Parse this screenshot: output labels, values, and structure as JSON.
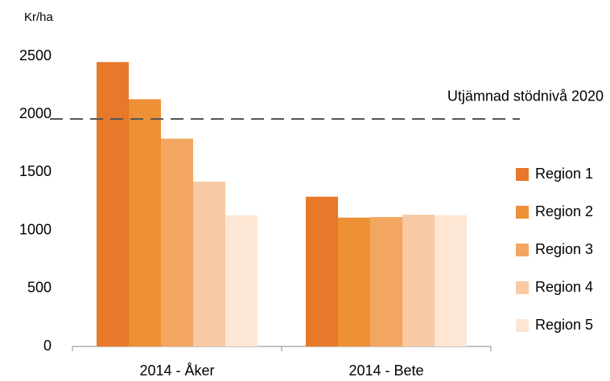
{
  "chart_data": {
    "type": "bar",
    "y_label": "Kr/ha",
    "categories": [
      "2014 - Åker",
      "2014 - Bete"
    ],
    "series": [
      {
        "name": "Region 1",
        "color": "#e8782a",
        "values": [
          2450,
          1290
        ]
      },
      {
        "name": "Region 2",
        "color": "#ee9035",
        "values": [
          2130,
          1110
        ]
      },
      {
        "name": "Region 3",
        "color": "#f2a660",
        "values": [
          1790,
          1115
        ]
      },
      {
        "name": "Region 4",
        "color": "#f9caa3",
        "values": [
          1420,
          1135
        ]
      },
      {
        "name": "Region 5",
        "color": "#fde6d4",
        "values": [
          1130,
          1130
        ]
      }
    ],
    "ylim": [
      0,
      2500
    ],
    "yticks": [
      0,
      500,
      1000,
      1500,
      2000,
      2500
    ],
    "reference_line": {
      "value": 1960,
      "label": "Utjämnad stödnivå 2020"
    },
    "legend": "right"
  }
}
